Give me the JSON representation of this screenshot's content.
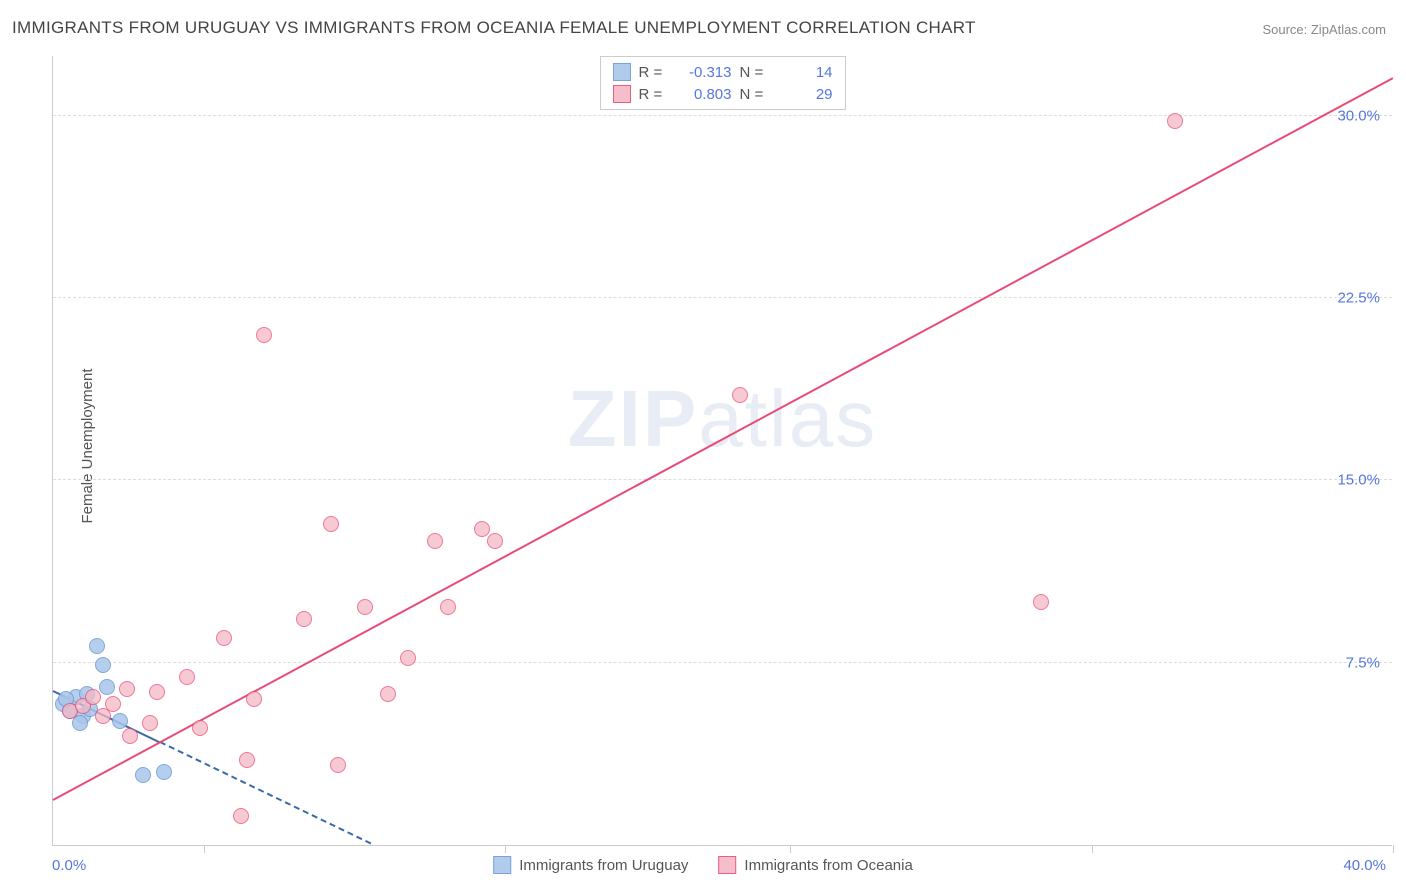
{
  "title": "IMMIGRANTS FROM URUGUAY VS IMMIGRANTS FROM OCEANIA FEMALE UNEMPLOYMENT CORRELATION CHART",
  "source": "Source: ZipAtlas.com",
  "y_axis_label": "Female Unemployment",
  "watermark_a": "ZIP",
  "watermark_b": "atlas",
  "chart": {
    "type": "scatter",
    "xlim": [
      0,
      40
    ],
    "ylim": [
      0,
      32.5
    ],
    "x_origin_label": "0.0%",
    "x_max_label": "40.0%",
    "y_ticks": [
      7.5,
      15.0,
      22.5,
      30.0
    ],
    "y_tick_labels": [
      "7.5%",
      "15.0%",
      "22.5%",
      "30.0%"
    ],
    "x_tick_positions": [
      4.5,
      13.5,
      22.0,
      31.0,
      40.0
    ],
    "background_color": "#ffffff",
    "grid_color": "#dddddd",
    "axis_color": "#cccccc",
    "value_text_color": "#5577dd",
    "label_text_color": "#555555",
    "title_color": "#444444",
    "marker_radius": 8,
    "series": [
      {
        "name": "Immigrants from Uruguay",
        "fill": "#a9c6ea",
        "stroke": "#6b9bd1",
        "fill_opacity": 0.55,
        "r_value": "-0.313",
        "n_value": "14",
        "trend": {
          "x1": 0,
          "y1": 6.3,
          "x2": 9.5,
          "y2": 0,
          "solid_until_x": 3.2,
          "color": "#3a6aa8",
          "width": 2
        },
        "points": [
          [
            0.3,
            5.8
          ],
          [
            0.5,
            5.5
          ],
          [
            0.7,
            6.1
          ],
          [
            0.9,
            5.3
          ],
          [
            1.0,
            6.2
          ],
          [
            1.1,
            5.6
          ],
          [
            1.3,
            8.2
          ],
          [
            1.5,
            7.4
          ],
          [
            1.6,
            6.5
          ],
          [
            0.8,
            5.0
          ],
          [
            2.0,
            5.1
          ],
          [
            2.7,
            2.9
          ],
          [
            3.3,
            3.0
          ],
          [
            0.4,
            6.0
          ]
        ]
      },
      {
        "name": "Immigrants from Oceania",
        "fill": "#f3b8c5",
        "stroke": "#e94b77",
        "fill_opacity": 0.45,
        "r_value": "0.803",
        "n_value": "29",
        "trend": {
          "x1": 0,
          "y1": 1.8,
          "x2": 40,
          "y2": 31.5,
          "color": "#e94b77",
          "width": 2
        },
        "points": [
          [
            0.5,
            5.5
          ],
          [
            0.9,
            5.7
          ],
          [
            1.2,
            6.1
          ],
          [
            1.5,
            5.3
          ],
          [
            2.3,
            4.5
          ],
          [
            2.2,
            6.4
          ],
          [
            3.1,
            6.3
          ],
          [
            2.9,
            5.0
          ],
          [
            4.0,
            6.9
          ],
          [
            4.4,
            4.8
          ],
          [
            5.1,
            8.5
          ],
          [
            5.6,
            1.2
          ],
          [
            6.0,
            6.0
          ],
          [
            5.8,
            3.5
          ],
          [
            6.3,
            21.0
          ],
          [
            7.5,
            9.3
          ],
          [
            8.3,
            13.2
          ],
          [
            8.5,
            3.3
          ],
          [
            9.3,
            9.8
          ],
          [
            10.0,
            6.2
          ],
          [
            10.6,
            7.7
          ],
          [
            11.4,
            12.5
          ],
          [
            11.8,
            9.8
          ],
          [
            12.8,
            13.0
          ],
          [
            13.2,
            12.5
          ],
          [
            20.5,
            18.5
          ],
          [
            29.5,
            10.0
          ],
          [
            33.5,
            29.8
          ],
          [
            1.8,
            5.8
          ]
        ]
      }
    ]
  },
  "legend_top": {
    "r_label": "R =",
    "n_label": "N ="
  }
}
